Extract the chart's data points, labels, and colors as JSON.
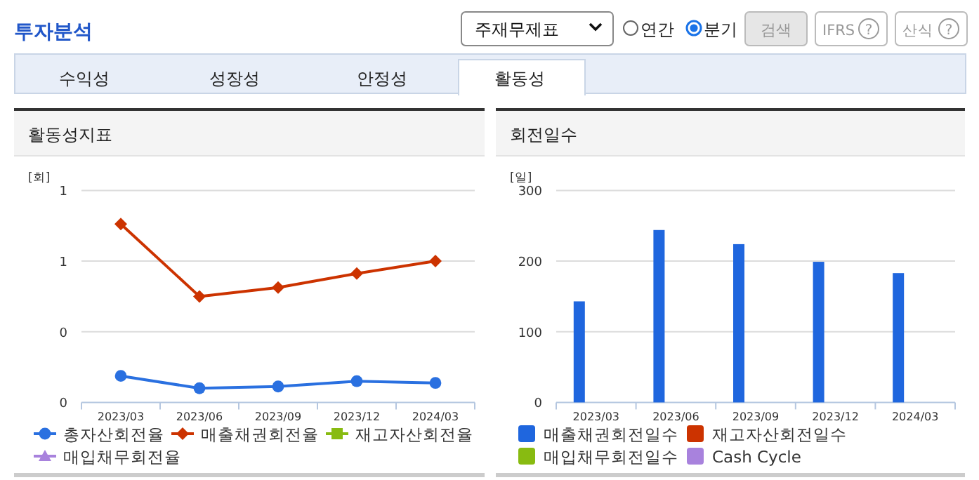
{
  "chart_data": [
    {
      "type": "other",
      "title": "투자분석",
      "annotations": [
        "주재무제표",
        "연간",
        "분기",
        "검색",
        "IFRS",
        "?",
        "산식",
        "?",
        "수익성",
        "성장성",
        "안정성",
        "활동성"
      ]
    },
    {
      "type": "line",
      "title": "활동성지표",
      "ylabel": "[회]",
      "categories": [
        "2023/03",
        "2023/06",
        "2023/09",
        "2023/12",
        "2024/03"
      ],
      "ylim": [
        0,
        1.2
      ],
      "yticks": [
        {
          "value": 0,
          "label": "0"
        },
        {
          "value": 0.4,
          "label": "0"
        },
        {
          "value": 0.8,
          "label": "1"
        },
        {
          "value": 1.2,
          "label": "1"
        }
      ],
      "grid": "y",
      "legend": "bottom",
      "line_style": "solid",
      "series": [
        {
          "name": "총자산회전율",
          "color": "#2a70e0",
          "marker": "circle",
          "values": [
            0.15,
            0.08,
            0.09,
            0.12,
            0.11
          ]
        },
        {
          "name": "매출채권회전율",
          "color": "#cc3300",
          "marker": "diamond",
          "values": [
            1.01,
            0.6,
            0.65,
            0.73,
            0.8
          ]
        },
        {
          "name": "재고자산회전율",
          "color": "#88bb11",
          "marker": "square",
          "values": [
            null,
            null,
            null,
            null,
            null
          ]
        },
        {
          "name": "매입채무회전율",
          "color": "#a882dd",
          "marker": "triangle",
          "values": [
            null,
            null,
            null,
            null,
            null
          ]
        }
      ]
    },
    {
      "type": "bar",
      "title": "회전일수",
      "ylabel": "[일]",
      "categories": [
        "2023/03",
        "2023/06",
        "2023/09",
        "2023/12",
        "2024/03"
      ],
      "ylim": [
        0,
        300
      ],
      "yticks": [
        0,
        100,
        200,
        300
      ],
      "grid": "y",
      "legend": "bottom",
      "series": [
        {
          "name": "매출채권회전일수",
          "color": "#1f66de",
          "values": [
            143,
            244,
            224,
            199,
            183
          ]
        },
        {
          "name": "재고자산회전일수",
          "color": "#cc3300",
          "values": [
            null,
            null,
            null,
            null,
            null
          ]
        },
        {
          "name": "매입채무회전일수",
          "color": "#88bb11",
          "values": [
            null,
            null,
            null,
            null,
            null
          ]
        },
        {
          "name": "Cash Cycle",
          "color": "#a882dd",
          "values": [
            null,
            null,
            null,
            null,
            null
          ]
        }
      ]
    }
  ]
}
